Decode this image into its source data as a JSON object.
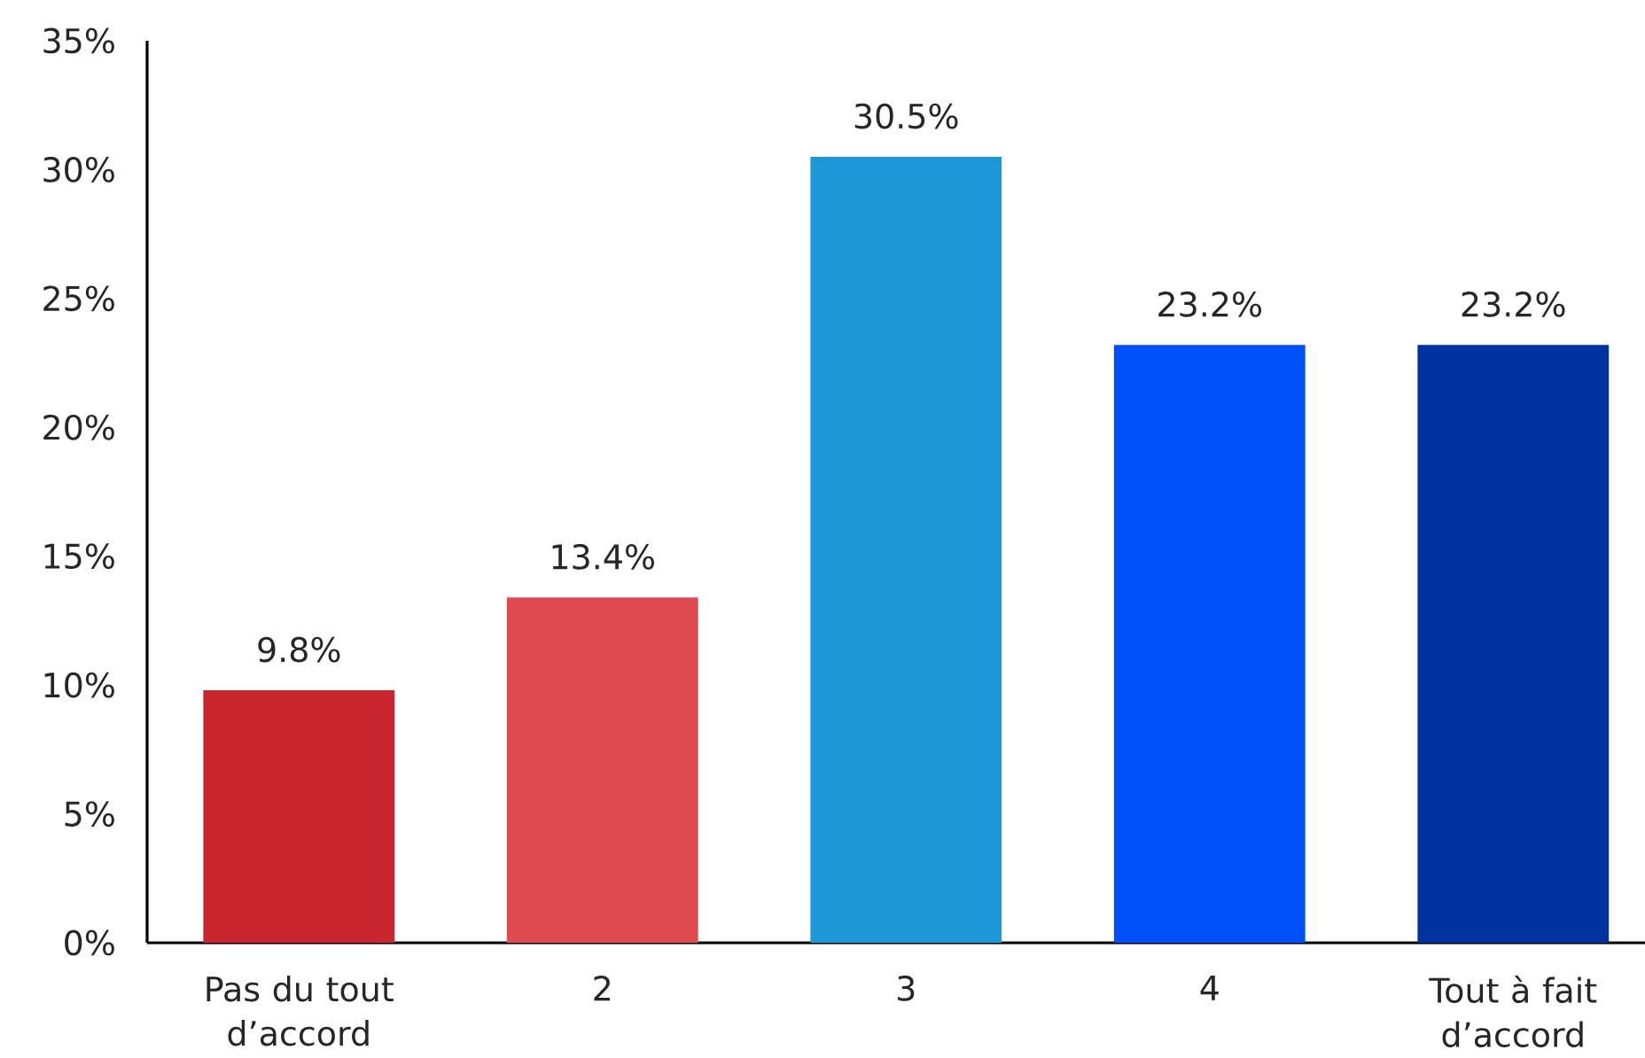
{
  "chart_data": {
    "type": "bar",
    "categories": [
      "Pas du tout d’accord",
      "2",
      "3",
      "4",
      "Tout à fait d’accord"
    ],
    "values": [
      9.8,
      13.4,
      30.5,
      23.2,
      23.2
    ],
    "colors": [
      "#c8252d",
      "#de4a50",
      "#1e98d6",
      "#0050fa",
      "#0033a0"
    ],
    "value_labels": [
      "9.8%",
      "13.4%",
      "30.5%",
      "23.2%",
      "23.2%"
    ],
    "ylim": [
      0,
      35
    ],
    "yticks": [
      {
        "value": 0,
        "label": "0%"
      },
      {
        "value": 5,
        "label": "5%"
      },
      {
        "value": 10,
        "label": "10%"
      },
      {
        "value": 15,
        "label": "15%"
      },
      {
        "value": 20,
        "label": "20%"
      },
      {
        "value": 25,
        "label": "25%"
      },
      {
        "value": 30,
        "label": "30%"
      },
      {
        "value": 35,
        "label": "35%"
      }
    ]
  }
}
